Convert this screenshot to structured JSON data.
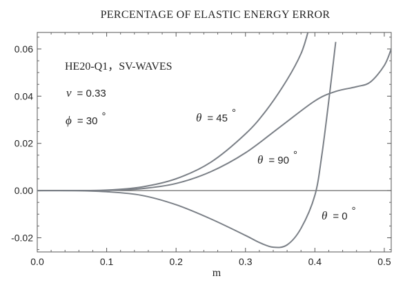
{
  "chart_data": {
    "type": "line",
    "title": "PERCENTAGE OF ELASTIC ENERGY ERROR",
    "xlabel": "m",
    "ylabel": "",
    "xlim": [
      0.0,
      0.51
    ],
    "ylim": [
      -0.026,
      0.067
    ],
    "xticks": [
      0.0,
      0.1,
      0.2,
      0.3,
      0.4,
      0.5
    ],
    "xtick_labels": [
      "0.0",
      "0.1",
      "0.2",
      "0.3",
      "0.4",
      "0.5"
    ],
    "yticks": [
      -0.02,
      0.0,
      0.02,
      0.04,
      0.06
    ],
    "ytick_labels": [
      "-0.02",
      "0.00",
      "0.02",
      "0.04",
      "0.06"
    ],
    "zero_line": true,
    "annotations": {
      "case": "HE20-Q1，SV-WAVES",
      "nu_symbol": "ν",
      "nu_value": "= 0.33",
      "phi_symbol": "ϕ",
      "phi_value": "= 30",
      "degree": "°"
    },
    "series": [
      {
        "name": "θ = 45°",
        "label_symbol": "θ",
        "label_value": "= 45",
        "x": [
          0.0,
          0.05,
          0.1,
          0.15,
          0.2,
          0.25,
          0.3,
          0.33,
          0.36,
          0.38,
          0.39
        ],
        "y": [
          0.0,
          0.0,
          0.0002,
          0.0015,
          0.005,
          0.012,
          0.024,
          0.034,
          0.047,
          0.058,
          0.067
        ]
      },
      {
        "name": "θ = 90°",
        "label_symbol": "θ",
        "label_value": "= 90",
        "x": [
          0.0,
          0.05,
          0.1,
          0.15,
          0.2,
          0.25,
          0.3,
          0.35,
          0.4,
          0.43,
          0.46,
          0.48,
          0.5,
          0.51
        ],
        "y": [
          0.0,
          0.0,
          0.0001,
          0.0008,
          0.003,
          0.008,
          0.016,
          0.027,
          0.038,
          0.042,
          0.044,
          0.046,
          0.053,
          0.06
        ]
      },
      {
        "name": "θ = 0°",
        "label_symbol": "θ",
        "label_value": "= 0",
        "x": [
          0.0,
          0.05,
          0.1,
          0.15,
          0.2,
          0.25,
          0.3,
          0.32,
          0.34,
          0.36,
          0.38,
          0.4,
          0.41,
          0.42,
          0.43
        ],
        "y": [
          0.0,
          0.0,
          -0.0005,
          -0.002,
          -0.006,
          -0.012,
          -0.019,
          -0.022,
          -0.024,
          -0.023,
          -0.016,
          -0.002,
          0.015,
          0.038,
          0.063
        ]
      }
    ]
  }
}
